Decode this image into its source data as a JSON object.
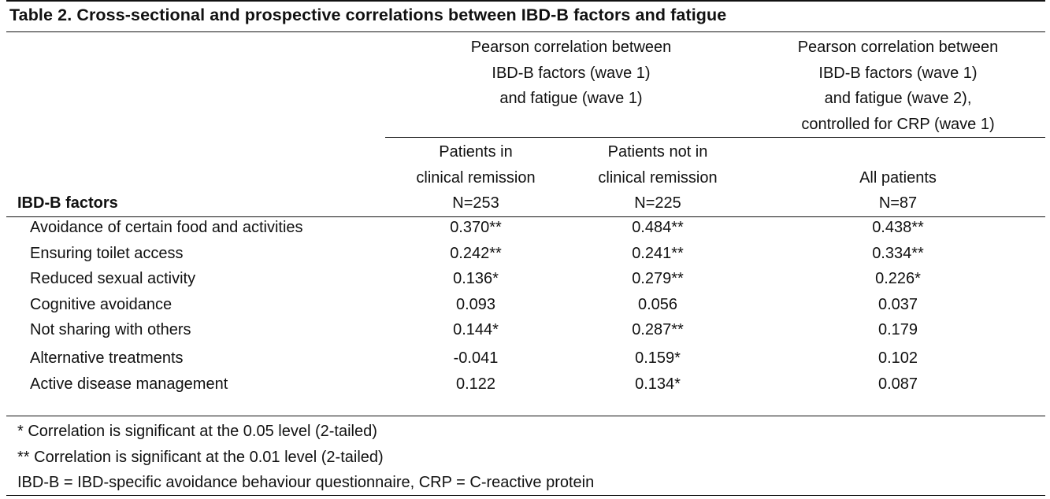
{
  "table": {
    "title": "Table 2. Cross-sectional and prospective correlations between IBD-B factors and fatigue",
    "group_headers": [
      {
        "lines": [
          "Pearson correlation between",
          "IBD-B factors (wave 1)",
          "and fatigue (wave 1)"
        ]
      },
      {
        "lines": [
          "Pearson correlation between",
          "IBD-B factors (wave 1)",
          "and fatigue (wave 2),",
          "controlled for CRP (wave 1)"
        ]
      }
    ],
    "sub_headers": [
      {
        "lines": [
          "Patients in",
          "clinical remission",
          "N=253"
        ]
      },
      {
        "lines": [
          "Patients not in",
          "clinical remission",
          "N=225"
        ]
      },
      {
        "lines": [
          "",
          "All patients",
          "N=87"
        ]
      }
    ],
    "factor_header": "IBD-B factors",
    "rows": [
      {
        "factor": "Avoidance of certain food and activities",
        "remission": "0.370**",
        "not_remission": "0.484**",
        "all_patients": "0.438**"
      },
      {
        "factor": "Ensuring toilet access",
        "remission": "0.242**",
        "not_remission": "0.241**",
        "all_patients": "0.334**"
      },
      {
        "factor": "Reduced sexual activity",
        "remission": "0.136*",
        "not_remission": "0.279**",
        "all_patients": "0.226*"
      },
      {
        "factor": "Cognitive avoidance",
        "remission": "0.093",
        "not_remission": "0.056",
        "all_patients": "0.037"
      },
      {
        "factor": "Not sharing with others",
        "remission": "0.144*",
        "not_remission": "0.287**",
        "all_patients": "0.179"
      },
      {
        "factor": "Alternative treatments",
        "remission": "-0.041",
        "not_remission": "0.159*",
        "all_patients": "0.102"
      },
      {
        "factor": "Active disease management",
        "remission": "0.122",
        "not_remission": "0.134*",
        "all_patients": "0.087"
      }
    ],
    "footnotes": [
      "* Correlation is significant at the 0.05 level (2-tailed)",
      "** Correlation is significant at the 0.01 level (2-tailed)",
      "IBD-B = IBD-specific avoidance behaviour questionnaire, CRP = C-reactive protein"
    ]
  }
}
